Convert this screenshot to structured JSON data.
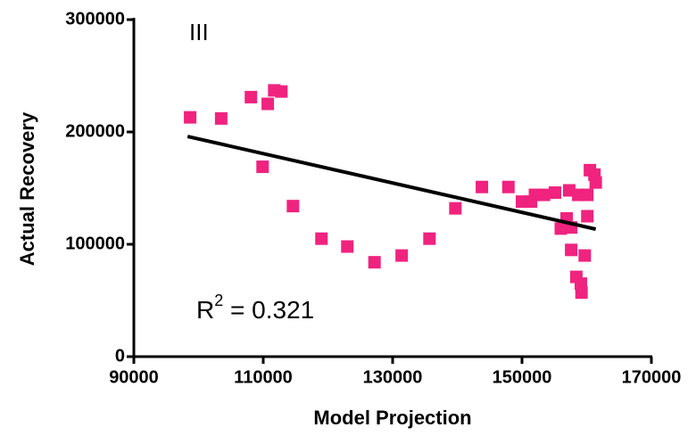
{
  "chart_data": {
    "type": "scatter",
    "x_label": "Model Projection",
    "y_label": "Actual Recovery",
    "annotation": "III",
    "r_squared": {
      "base": "R",
      "exponent": "2",
      "rest": " = 0.321"
    },
    "color": "#f0237f",
    "series": [
      {
        "x": [
          98700,
          103500,
          108100,
          110700,
          111700,
          112800,
          109900,
          114600,
          119000,
          123000,
          127200,
          131400,
          135700,
          139700,
          143800,
          147900,
          150000,
          151400,
          152000,
          153400,
          155100,
          156000,
          156900,
          157600,
          157300,
          157600,
          158400,
          159100,
          159200,
          159700,
          158700,
          160100,
          160100,
          160500,
          161200,
          161400
        ],
        "values": [
          213000,
          212000,
          231000,
          225000,
          237000,
          236000,
          169000,
          134000,
          105000,
          98000,
          84000,
          90000,
          105000,
          132000,
          151000,
          151000,
          138000,
          138000,
          144000,
          144000,
          146000,
          114000,
          123000,
          115000,
          148000,
          95000,
          71000,
          65000,
          57000,
          90000,
          144000,
          144000,
          125000,
          166000,
          162000,
          155000
        ]
      }
    ],
    "fit": {
      "x": [
        98300,
        161400
      ],
      "values": [
        196000,
        113500
      ],
      "color": "#000000"
    },
    "xlim": [
      90000,
      170000
    ],
    "xticks": [
      90000,
      110000,
      130000,
      150000,
      170000
    ],
    "ylim": [
      0,
      300000
    ],
    "yticks": [
      0,
      100000,
      200000,
      300000
    ]
  }
}
